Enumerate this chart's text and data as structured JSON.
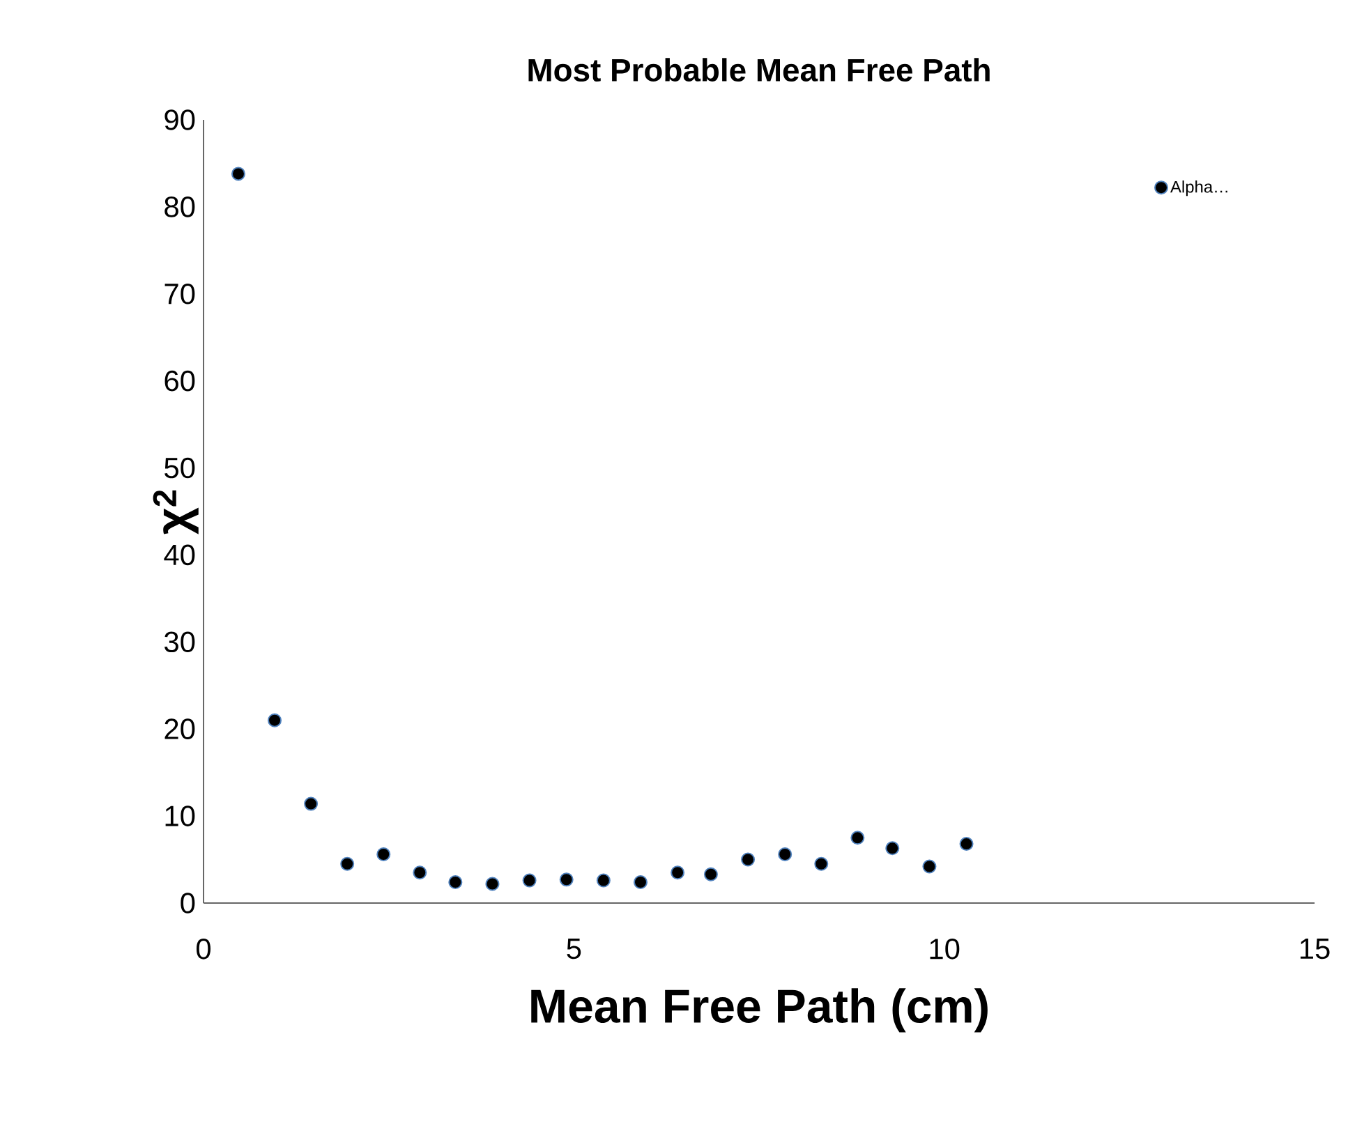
{
  "chart_data": {
    "type": "scatter",
    "title": "Most Probable Mean Free Path",
    "xlabel": "Mean Free Path (cm)",
    "ylabel": "**χ$^{2}$**",
    "series": [
      {
        "name": "Alpha…",
        "color": "#000000",
        "x": [
          0.47,
          0.96,
          1.45,
          1.94,
          2.43,
          2.92,
          3.4,
          3.9,
          4.4,
          4.9,
          5.4,
          5.9,
          6.4,
          6.85,
          7.35,
          7.85,
          8.34,
          8.83,
          9.3,
          9.8,
          10.3
        ],
        "values": [
          83.8,
          21.0,
          11.4,
          4.5,
          5.6,
          3.5,
          2.4,
          2.2,
          2.6,
          2.7,
          2.6,
          2.4,
          3.5,
          3.3,
          5.0,
          5.6,
          4.5,
          7.5,
          6.3,
          4.2,
          6.8
        ]
      }
    ],
    "xlim": [
      0,
      15
    ],
    "ylim": [
      0,
      90
    ],
    "xticks": [
      0,
      5,
      10,
      15
    ],
    "yticks": [
      0,
      10,
      20,
      30,
      40,
      50,
      60,
      70,
      80,
      90
    ],
    "grid": false,
    "legend": "top right",
    "marker": "circle"
  }
}
